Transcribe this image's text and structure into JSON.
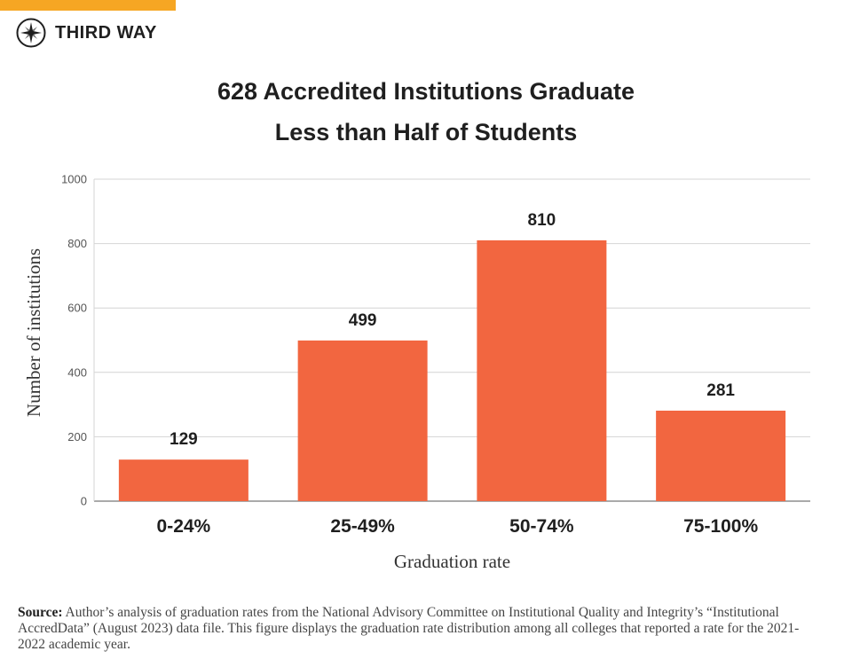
{
  "brand": {
    "name": "THIRD WAY",
    "accent_color": "#f6a623",
    "icon": "compass-star-icon"
  },
  "chart_data": {
    "type": "bar",
    "title_lines": [
      "628 Accredited Institutions Graduate",
      "Less than Half of Students"
    ],
    "categories": [
      "0-24%",
      "25-49%",
      "50-74%",
      "75-100%"
    ],
    "values": [
      129,
      499,
      810,
      281
    ],
    "data_labels": [
      "129",
      "499",
      "810",
      "281"
    ],
    "xlabel": "Graduation rate",
    "ylabel": "Number of institutions",
    "ylim": [
      0,
      1000
    ],
    "yticks": [
      0,
      200,
      400,
      600,
      800,
      1000
    ],
    "grid": true,
    "bar_color": "#f26640"
  },
  "source": {
    "label": "Source:",
    "text": "Author’s analysis of graduation rates from the National Advisory Committee on Institutional Quality and Integrity’s “Institutional AccredData” (August 2023) data file. This figure displays the graduation rate distribution among all colleges that reported a rate for the 2021-2022 academic year."
  }
}
